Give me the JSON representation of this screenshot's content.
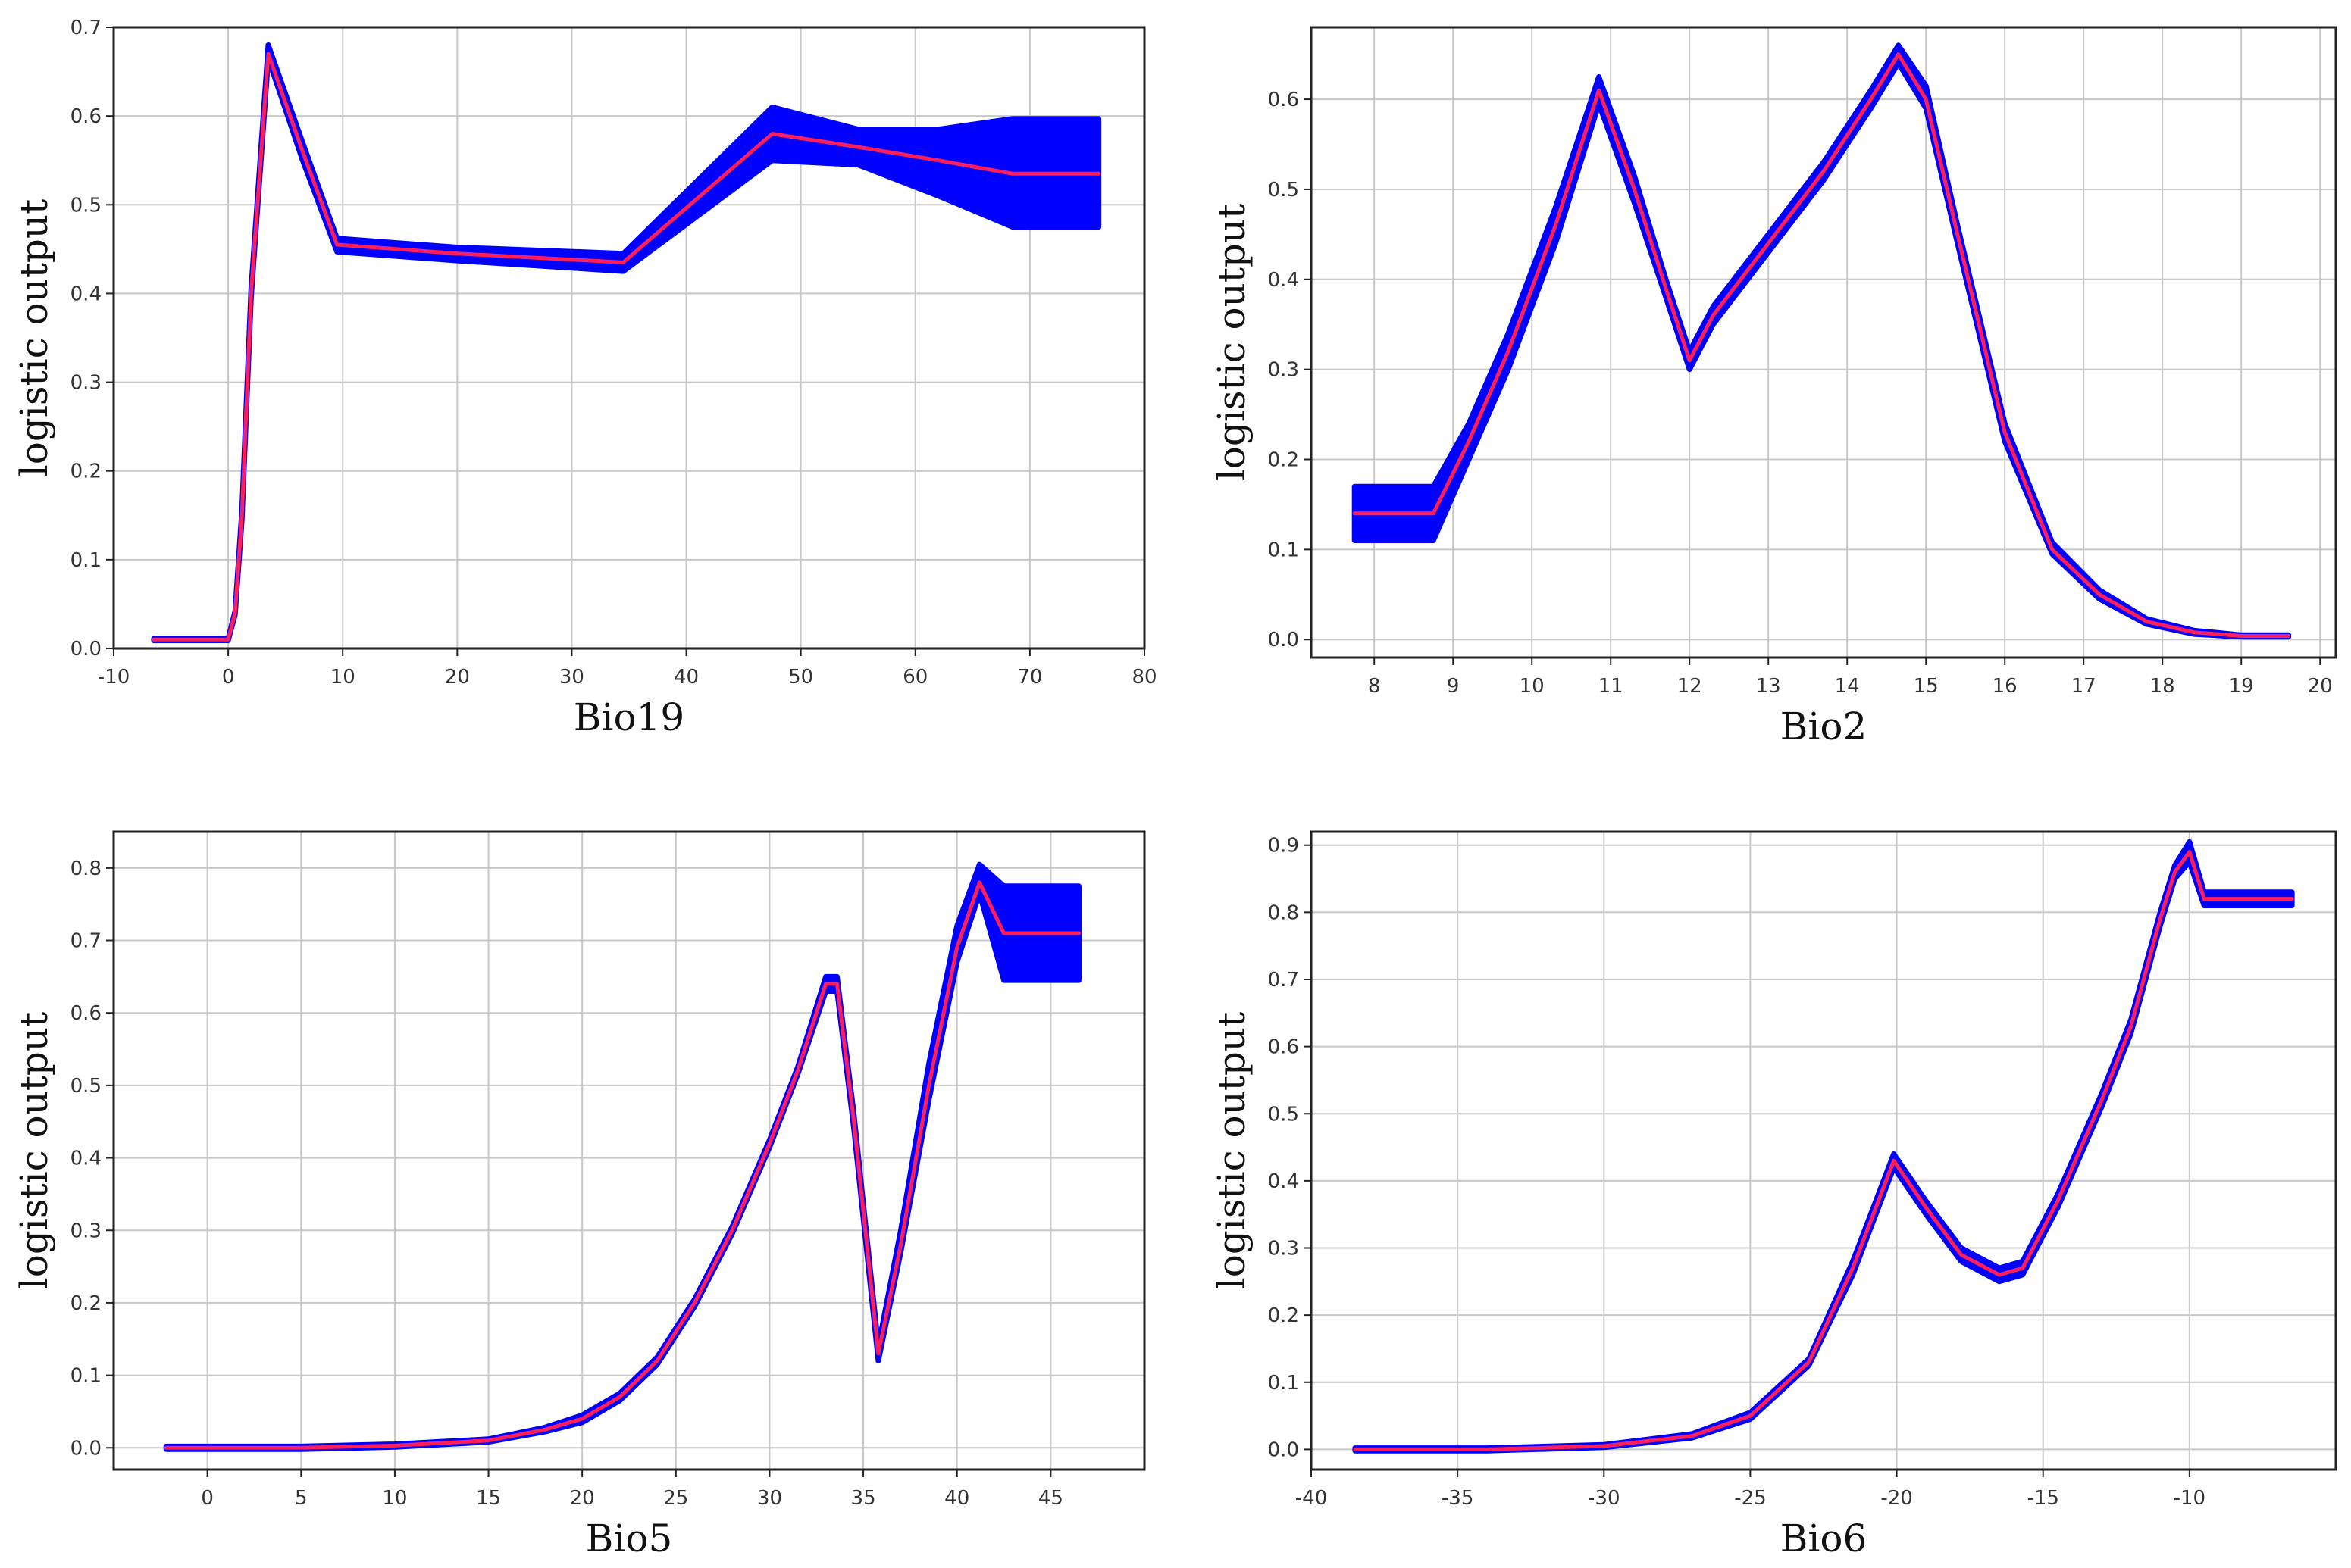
{
  "colors": {
    "band": "#0000ff",
    "line": "#ff1e5a",
    "grid": "#c8c8c8",
    "frame": "#222222"
  },
  "chart_data": [
    {
      "type": "area",
      "title": "",
      "xlabel": "Bio19",
      "ylabel": "logistic output",
      "xlim": [
        -10,
        80
      ],
      "ylim": [
        0,
        0.7
      ],
      "xticks": [
        -10,
        0,
        10,
        20,
        30,
        40,
        50,
        60,
        70,
        80
      ],
      "yticks": [
        0.0,
        0.1,
        0.2,
        0.3,
        0.4,
        0.5,
        0.6,
        0.7
      ],
      "grid": true,
      "series": [
        {
          "role": "mean",
          "x": [
            -6.5,
            0,
            0.6,
            1.2,
            2,
            3.5,
            6.5,
            9.5,
            20,
            34.5,
            47.5,
            55,
            62,
            68.5,
            76
          ],
          "y": [
            0.01,
            0.01,
            0.04,
            0.15,
            0.4,
            0.67,
            0.56,
            0.455,
            0.445,
            0.435,
            0.58,
            0.565,
            0.55,
            0.535,
            0.535
          ]
        },
        {
          "role": "upper",
          "x": [
            -6.5,
            0,
            0.6,
            1.2,
            2,
            3.5,
            6.5,
            9.5,
            20,
            34.5,
            47.5,
            55,
            62,
            68.5,
            76
          ],
          "y": [
            0.011,
            0.011,
            0.042,
            0.155,
            0.405,
            0.68,
            0.57,
            0.462,
            0.452,
            0.445,
            0.61,
            0.585,
            0.585,
            0.597,
            0.597
          ]
        },
        {
          "role": "lower",
          "x": [
            -6.5,
            0,
            0.6,
            1.2,
            2,
            3.5,
            6.5,
            9.5,
            20,
            34.5,
            47.5,
            55,
            62,
            68.5,
            76
          ],
          "y": [
            0.009,
            0.009,
            0.038,
            0.145,
            0.395,
            0.665,
            0.55,
            0.447,
            0.437,
            0.425,
            0.55,
            0.545,
            0.51,
            0.475,
            0.475
          ]
        }
      ]
    },
    {
      "type": "area",
      "title": "",
      "xlabel": "Bio2",
      "ylabel": "logistic output",
      "xlim": [
        7.2,
        20.2
      ],
      "ylim": [
        -0.02,
        0.68
      ],
      "xticks": [
        8,
        9,
        10,
        11,
        12,
        13,
        14,
        15,
        16,
        17,
        18,
        19,
        20
      ],
      "yticks": [
        0.0,
        0.1,
        0.2,
        0.3,
        0.4,
        0.5,
        0.6
      ],
      "grid": true,
      "series": [
        {
          "role": "mean",
          "x": [
            7.75,
            8.75,
            9.2,
            9.7,
            10.3,
            10.85,
            11.3,
            11.7,
            12.0,
            12.3,
            13.0,
            13.7,
            14.3,
            14.65,
            15.0,
            15.4,
            16.0,
            16.6,
            17.2,
            17.8,
            18.4,
            19.0,
            19.6
          ],
          "y": [
            0.14,
            0.14,
            0.22,
            0.32,
            0.46,
            0.61,
            0.5,
            0.39,
            0.31,
            0.36,
            0.44,
            0.52,
            0.6,
            0.65,
            0.6,
            0.45,
            0.23,
            0.1,
            0.05,
            0.02,
            0.008,
            0.004,
            0.004
          ]
        },
        {
          "role": "upper",
          "x": [
            7.75,
            8.75,
            9.2,
            9.7,
            10.3,
            10.85,
            11.3,
            11.7,
            12.0,
            12.3,
            13.0,
            13.7,
            14.3,
            14.65,
            15.0,
            15.4,
            16.0,
            16.6,
            17.2,
            17.8,
            18.4,
            19.0,
            19.6
          ],
          "y": [
            0.17,
            0.17,
            0.24,
            0.34,
            0.48,
            0.625,
            0.515,
            0.4,
            0.32,
            0.37,
            0.45,
            0.53,
            0.61,
            0.66,
            0.615,
            0.46,
            0.24,
            0.108,
            0.055,
            0.023,
            0.01,
            0.005,
            0.005
          ]
        },
        {
          "role": "lower",
          "x": [
            7.75,
            8.75,
            9.2,
            9.7,
            10.3,
            10.85,
            11.3,
            11.7,
            12.0,
            12.3,
            13.0,
            13.7,
            14.3,
            14.65,
            15.0,
            15.4,
            16.0,
            16.6,
            17.2,
            17.8,
            18.4,
            19.0,
            19.6
          ],
          "y": [
            0.11,
            0.11,
            0.2,
            0.3,
            0.44,
            0.595,
            0.485,
            0.38,
            0.3,
            0.35,
            0.43,
            0.51,
            0.59,
            0.64,
            0.59,
            0.44,
            0.22,
            0.095,
            0.045,
            0.017,
            0.006,
            0.003,
            0.003
          ]
        }
      ]
    },
    {
      "type": "area",
      "title": "",
      "xlabel": "Bio5",
      "ylabel": "logistic output",
      "xlim": [
        -5,
        50
      ],
      "ylim": [
        -0.03,
        0.85
      ],
      "xticks": [
        0,
        5,
        10,
        15,
        20,
        25,
        30,
        35,
        40,
        45
      ],
      "yticks": [
        0.0,
        0.1,
        0.2,
        0.3,
        0.4,
        0.5,
        0.6,
        0.7,
        0.8
      ],
      "grid": true,
      "series": [
        {
          "role": "mean",
          "x": [
            -2.2,
            5,
            10,
            15,
            18,
            20,
            22,
            24,
            26,
            28,
            30,
            31.5,
            33,
            33.6,
            34.5,
            35.8,
            37,
            38.5,
            40,
            41.2,
            42.5,
            46.5
          ],
          "y": [
            0.0,
            0.0,
            0.003,
            0.01,
            0.025,
            0.04,
            0.07,
            0.12,
            0.2,
            0.3,
            0.42,
            0.52,
            0.64,
            0.64,
            0.45,
            0.13,
            0.28,
            0.5,
            0.69,
            0.78,
            0.71,
            0.71
          ]
        },
        {
          "role": "upper",
          "x": [
            -2.2,
            5,
            10,
            15,
            18,
            20,
            22,
            24,
            26,
            28,
            30,
            31.5,
            33,
            33.6,
            34.5,
            35.8,
            37,
            38.5,
            40,
            41.2,
            42.5,
            46.5
          ],
          "y": [
            0.002,
            0.002,
            0.005,
            0.012,
            0.028,
            0.045,
            0.075,
            0.125,
            0.205,
            0.305,
            0.425,
            0.525,
            0.65,
            0.65,
            0.46,
            0.14,
            0.3,
            0.53,
            0.72,
            0.805,
            0.775,
            0.775
          ]
        },
        {
          "role": "lower",
          "x": [
            -2.2,
            5,
            10,
            15,
            18,
            20,
            22,
            24,
            26,
            28,
            30,
            31.5,
            33,
            33.6,
            34.5,
            35.8,
            37,
            38.5,
            40,
            41.2,
            42.5,
            46.5
          ],
          "y": [
            -0.002,
            -0.002,
            0.001,
            0.008,
            0.022,
            0.035,
            0.065,
            0.115,
            0.195,
            0.295,
            0.415,
            0.515,
            0.63,
            0.63,
            0.44,
            0.12,
            0.27,
            0.48,
            0.67,
            0.765,
            0.645,
            0.645
          ]
        }
      ]
    },
    {
      "type": "area",
      "title": "",
      "xlabel": "Bio6",
      "ylabel": "logistic output",
      "xlim": [
        -40,
        -5
      ],
      "ylim": [
        -0.03,
        0.92
      ],
      "xticks": [
        -40,
        -35,
        -30,
        -25,
        -20,
        -15,
        -10
      ],
      "yticks": [
        0.0,
        0.1,
        0.2,
        0.3,
        0.4,
        0.5,
        0.6,
        0.7,
        0.8,
        0.9
      ],
      "grid": true,
      "series": [
        {
          "role": "mean",
          "x": [
            -38.5,
            -34,
            -30,
            -27,
            -25,
            -23,
            -21.5,
            -20.1,
            -19,
            -17.8,
            -16.5,
            -15.7,
            -14.5,
            -13,
            -12,
            -11,
            -10.5,
            -10,
            -9.5,
            -6.5
          ],
          "y": [
            0.0,
            0.0,
            0.005,
            0.02,
            0.05,
            0.13,
            0.27,
            0.43,
            0.36,
            0.29,
            0.26,
            0.27,
            0.37,
            0.52,
            0.63,
            0.79,
            0.86,
            0.89,
            0.82,
            0.82
          ]
        },
        {
          "role": "upper",
          "x": [
            -38.5,
            -34,
            -30,
            -27,
            -25,
            -23,
            -21.5,
            -20.1,
            -19,
            -17.8,
            -16.5,
            -15.7,
            -14.5,
            -13,
            -12,
            -11,
            -10.5,
            -10,
            -9.5,
            -6.5
          ],
          "y": [
            0.002,
            0.002,
            0.007,
            0.023,
            0.055,
            0.135,
            0.28,
            0.44,
            0.37,
            0.3,
            0.27,
            0.28,
            0.38,
            0.53,
            0.64,
            0.8,
            0.87,
            0.905,
            0.83,
            0.83
          ]
        },
        {
          "role": "lower",
          "x": [
            -38.5,
            -34,
            -30,
            -27,
            -25,
            -23,
            -21.5,
            -20.1,
            -19,
            -17.8,
            -16.5,
            -15.7,
            -14.5,
            -13,
            -12,
            -11,
            -10.5,
            -10,
            -9.5,
            -6.5
          ],
          "y": [
            -0.002,
            -0.002,
            0.003,
            0.017,
            0.045,
            0.125,
            0.26,
            0.42,
            0.35,
            0.28,
            0.25,
            0.26,
            0.36,
            0.51,
            0.62,
            0.78,
            0.85,
            0.875,
            0.81,
            0.81
          ]
        }
      ]
    }
  ]
}
